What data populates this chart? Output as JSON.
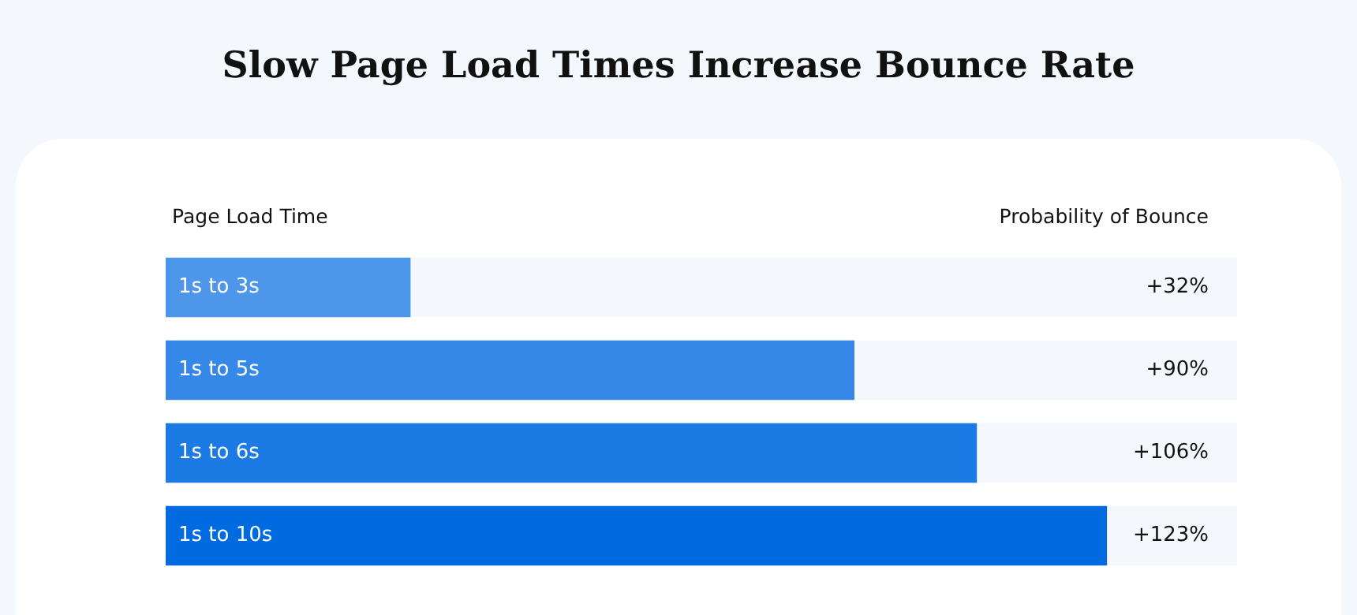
{
  "chart_data": {
    "type": "bar",
    "orientation": "horizontal",
    "title": "Slow Page Load Times Increase Bounce Rate",
    "ylabel": "Page Load Time",
    "xlabel": "Probability of Bounce",
    "categories": [
      "1s to 3s",
      "1s to 5s",
      "1s to 6s",
      "1s to 10s"
    ],
    "values": [
      32,
      90,
      106,
      123
    ],
    "value_labels": [
      "+32%",
      "+90%",
      "+106%",
      "+123%"
    ],
    "colors": [
      "#4d96ea",
      "#3588e8",
      "#1c7ae5",
      "#006be0"
    ],
    "legend": false
  }
}
